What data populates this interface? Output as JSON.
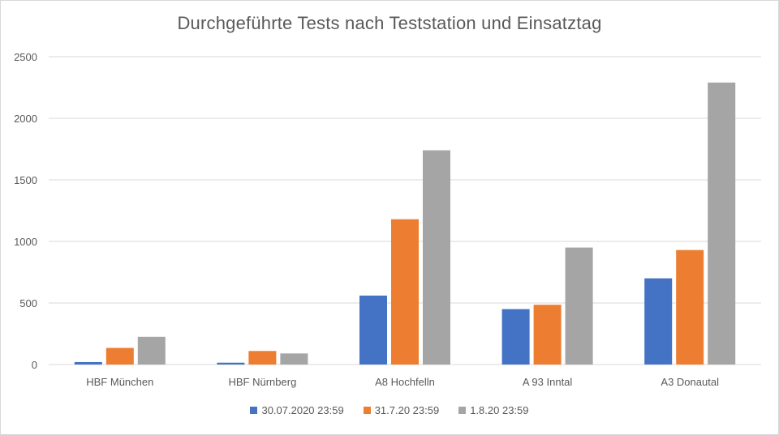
{
  "chart_data": {
    "type": "bar",
    "title": "Durchgeführte Tests nach Teststation und Einsatztag",
    "categories": [
      "HBF München",
      "HBF Nürnberg",
      "A8 Hochfelln",
      "A 93 Inntal",
      "A3 Donautal"
    ],
    "series": [
      {
        "name": "30.07.2020 23:59",
        "color": "#4472C4",
        "values": [
          20,
          15,
          560,
          450,
          700
        ]
      },
      {
        "name": "31.7.20 23:59",
        "color": "#ED7D31",
        "values": [
          135,
          110,
          1180,
          485,
          930
        ]
      },
      {
        "name": "1.8.20 23:59",
        "color": "#A5A5A5",
        "values": [
          225,
          90,
          1740,
          950,
          2290
        ]
      }
    ],
    "ylim": [
      0,
      2500
    ],
    "yticks": [
      "0",
      "500",
      "1000",
      "1500",
      "2000",
      "2500"
    ],
    "grid": true,
    "legend": "bottom",
    "xlabel": "",
    "ylabel": ""
  }
}
